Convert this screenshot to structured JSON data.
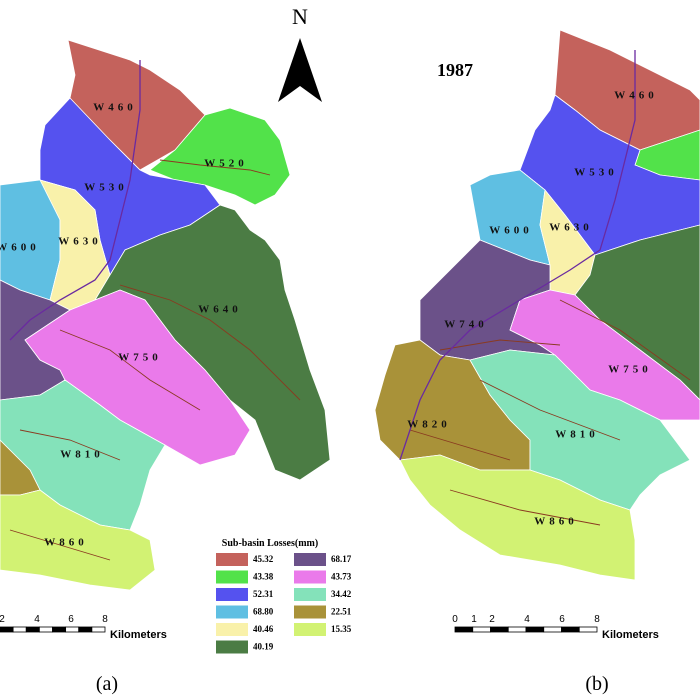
{
  "north_label": "N",
  "year": "1987",
  "legend": {
    "title": "Sub-basin Losses(mm)",
    "entries": [
      {
        "label": "45.32",
        "color": "#c4625c"
      },
      {
        "label": "43.38",
        "color": "#52e24a"
      },
      {
        "label": "52.31",
        "color": "#5552ef"
      },
      {
        "label": "68.80",
        "color": "#5fbfe2"
      },
      {
        "label": "40.46",
        "color": "#f9f1aa"
      },
      {
        "label": "40.19",
        "color": "#4b7c44"
      },
      {
        "label": "68.17",
        "color": "#6b5189"
      },
      {
        "label": "43.73",
        "color": "#ea7aea"
      },
      {
        "label": "34.42",
        "color": "#84e2ba"
      },
      {
        "label": "22.51",
        "color": "#a99239"
      },
      {
        "label": "15.35",
        "color": "#d2f273"
      }
    ]
  },
  "panel_a": {
    "label": "(a)",
    "subbasins": [
      "W460",
      "W520",
      "W530",
      "W600",
      "W630",
      "W640",
      "W750",
      "W810",
      "W860"
    ],
    "scale": {
      "ticks": [
        "2",
        "4",
        "6",
        "8"
      ],
      "unit": "Kilometers"
    }
  },
  "panel_b": {
    "label": "(b)",
    "subbasins": [
      "W460",
      "W530",
      "W600",
      "W630",
      "W740",
      "W750",
      "W820",
      "W810",
      "W860"
    ],
    "scale": {
      "ticks": [
        "0",
        "1",
        "2",
        "4",
        "6",
        "8"
      ],
      "unit": "Kilometers"
    }
  }
}
